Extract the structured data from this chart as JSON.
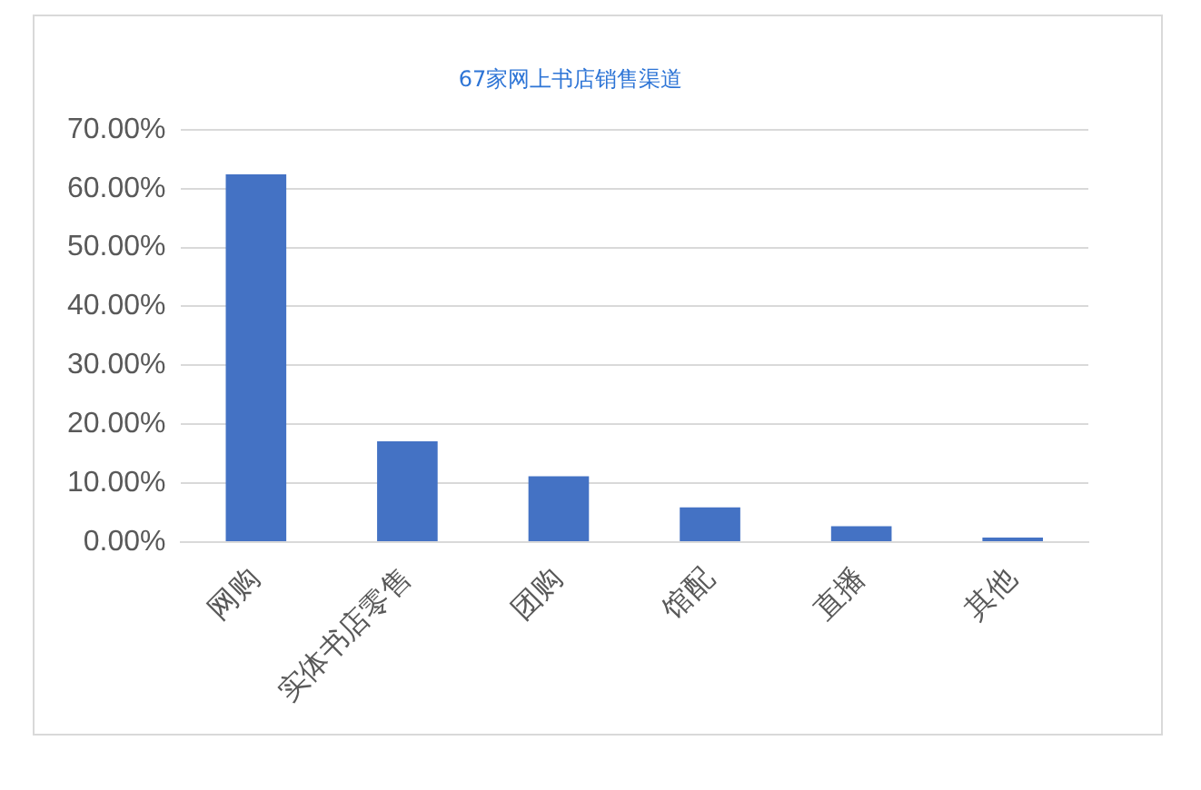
{
  "chart_data": {
    "type": "bar",
    "title": "67家网上书店销售渠道",
    "categories": [
      "网购",
      "实体书店零售",
      "团购",
      "馆配",
      "直播",
      "其他"
    ],
    "values": [
      62.4,
      17.1,
      11.2,
      5.9,
      2.7,
      0.8
    ],
    "color": "#4472c4",
    "ylim": [
      0,
      70
    ],
    "yticks": [
      {
        "value": 0,
        "label": "0.00%"
      },
      {
        "value": 10,
        "label": "10.00%"
      },
      {
        "value": 20,
        "label": "20.00%"
      },
      {
        "value": 30,
        "label": "30.00%"
      },
      {
        "value": 40,
        "label": "40.00%"
      },
      {
        "value": 50,
        "label": "50.00%"
      },
      {
        "value": 60,
        "label": "60.00%"
      },
      {
        "value": 70,
        "label": "70.00%"
      }
    ],
    "grid": "y",
    "legend": false
  }
}
